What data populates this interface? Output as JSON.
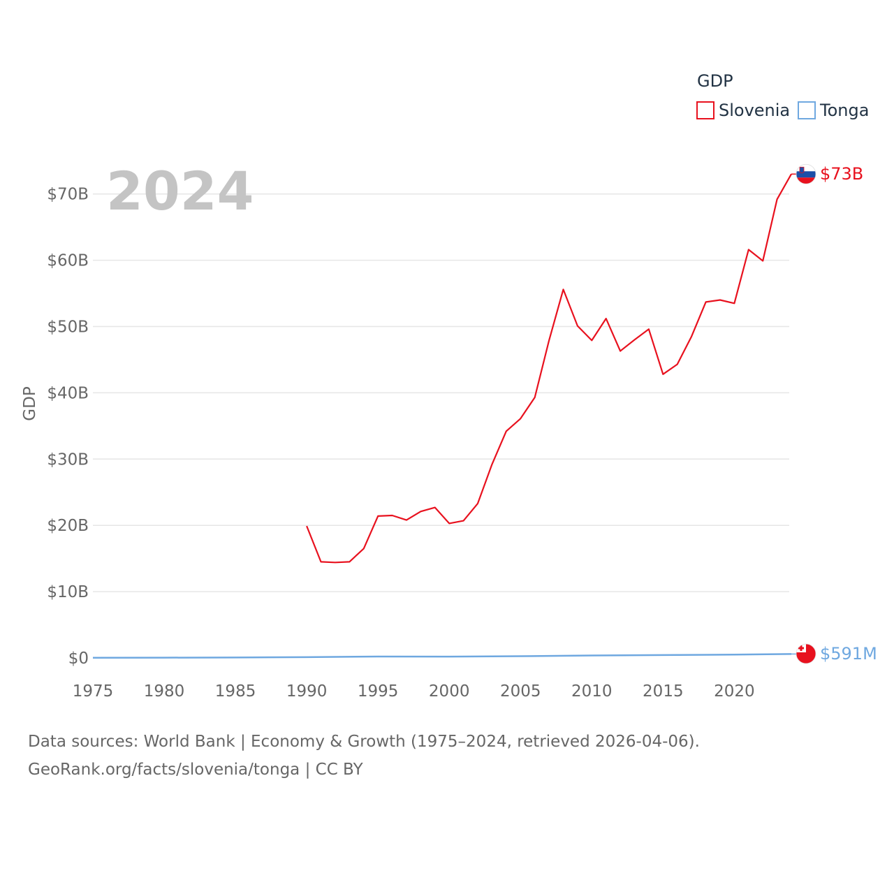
{
  "colors": {
    "slovenia": "#e8111e",
    "tonga": "#6fa8e0",
    "grid": "#e6e6e6",
    "axis_text": "#666666"
  },
  "chart_data": {
    "type": "line",
    "title": "",
    "big_year": "2024",
    "ylabel": "GDP",
    "xlabel": "",
    "xlim": [
      1975,
      2024
    ],
    "ylim": [
      0,
      75
    ],
    "unit": "billion USD",
    "x_ticks": [
      1975,
      1980,
      1985,
      1990,
      1995,
      2000,
      2005,
      2010,
      2015,
      2020
    ],
    "y_ticks": [
      {
        "value": 0,
        "label": "$0"
      },
      {
        "value": 10,
        "label": "$10B"
      },
      {
        "value": 20,
        "label": "$20B"
      },
      {
        "value": 30,
        "label": "$30B"
      },
      {
        "value": 40,
        "label": "$40B"
      },
      {
        "value": 50,
        "label": "$50B"
      },
      {
        "value": 60,
        "label": "$60B"
      },
      {
        "value": 70,
        "label": "$70B"
      }
    ],
    "legend": {
      "title": "GDP",
      "entries": [
        "Slovenia",
        "Tonga"
      ]
    },
    "series": [
      {
        "name": "Slovenia",
        "color": "#e8111e",
        "end_label": "$73B",
        "x": [
          1990,
          1991,
          1992,
          1993,
          1994,
          1995,
          1996,
          1997,
          1998,
          1999,
          2000,
          2001,
          2002,
          2003,
          2004,
          2005,
          2006,
          2007,
          2008,
          2009,
          2010,
          2011,
          2012,
          2013,
          2014,
          2015,
          2016,
          2017,
          2018,
          2019,
          2020,
          2021,
          2022,
          2023,
          2024
        ],
        "y": [
          19.9,
          14.5,
          14.4,
          14.5,
          16.5,
          21.4,
          21.5,
          20.8,
          22.1,
          22.7,
          20.3,
          20.7,
          23.3,
          29.2,
          34.2,
          36.1,
          39.3,
          47.9,
          55.6,
          50.1,
          47.9,
          51.2,
          46.3,
          48.0,
          49.6,
          42.8,
          44.3,
          48.5,
          53.7,
          54.0,
          53.5,
          61.6,
          59.9,
          69.2,
          73.0
        ]
      },
      {
        "name": "Tonga",
        "color": "#6fa8e0",
        "end_label": "$591M",
        "x": [
          1975,
          1980,
          1985,
          1990,
          1995,
          2000,
          2005,
          2010,
          2015,
          2020,
          2024
        ],
        "y": [
          0.02,
          0.04,
          0.06,
          0.12,
          0.21,
          0.2,
          0.26,
          0.37,
          0.43,
          0.49,
          0.59
        ]
      }
    ]
  },
  "footer": {
    "line1": "Data sources: World Bank | Economy & Growth (1975–2024, retrieved 2026-04-06).",
    "line2": "GeoRank.org/facts/slovenia/tonga | CC BY"
  }
}
